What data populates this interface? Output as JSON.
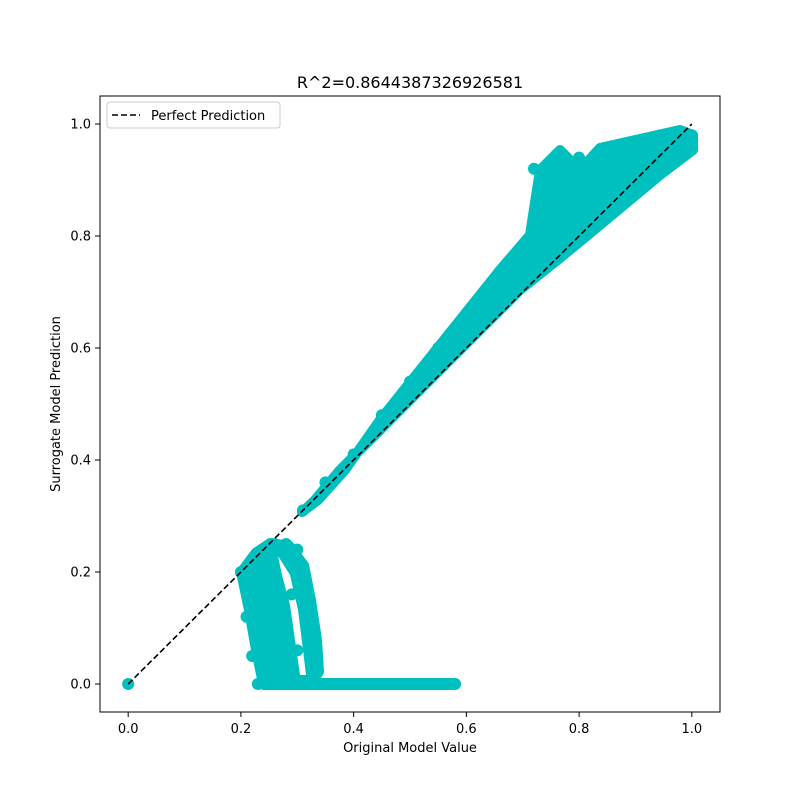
{
  "chart_data": {
    "type": "scatter",
    "title": "R^2=0.8644387326926581",
    "xlabel": "Original Model Value",
    "ylabel": "Surrogate Model Prediction",
    "xlim": [
      -0.05,
      1.05
    ],
    "ylim": [
      -0.05,
      1.05
    ],
    "xticks": [
      0.0,
      0.2,
      0.4,
      0.6,
      0.8,
      1.0
    ],
    "yticks": [
      0.0,
      0.2,
      0.4,
      0.6,
      0.8,
      1.0
    ],
    "xtick_labels": [
      "0.0",
      "0.2",
      "0.4",
      "0.6",
      "0.8",
      "1.0"
    ],
    "ytick_labels": [
      "0.0",
      "0.2",
      "0.4",
      "0.6",
      "0.8",
      "1.0"
    ],
    "grid": false,
    "legend": {
      "placement": "top-left",
      "entries": [
        "Perfect Prediction"
      ]
    },
    "colors": {
      "points": "#00bfbf",
      "reference_line": "#000000"
    },
    "series": [
      {
        "kind": "scatter",
        "points": [
          [
            0.0,
            0.0
          ],
          [
            0.2,
            0.2
          ],
          [
            0.22,
            0.22
          ],
          [
            0.24,
            0.24
          ],
          [
            0.26,
            0.25
          ],
          [
            0.28,
            0.25
          ],
          [
            0.3,
            0.24
          ],
          [
            0.31,
            0.2
          ],
          [
            0.21,
            0.12
          ],
          [
            0.22,
            0.05
          ],
          [
            0.23,
            0.0
          ],
          [
            0.25,
            0.18
          ],
          [
            0.26,
            0.08
          ],
          [
            0.27,
            0.0
          ],
          [
            0.29,
            0.16
          ],
          [
            0.3,
            0.06
          ],
          [
            0.31,
            0.0
          ],
          [
            0.32,
            0.12
          ],
          [
            0.33,
            0.04
          ],
          [
            0.35,
            0.0
          ],
          [
            0.4,
            0.0
          ],
          [
            0.45,
            0.0
          ],
          [
            0.5,
            0.0
          ],
          [
            0.55,
            0.0
          ],
          [
            0.58,
            0.0
          ],
          [
            0.31,
            0.31
          ],
          [
            0.35,
            0.36
          ],
          [
            0.4,
            0.41
          ],
          [
            0.45,
            0.48
          ],
          [
            0.5,
            0.54
          ],
          [
            0.55,
            0.6
          ],
          [
            0.6,
            0.66
          ],
          [
            0.65,
            0.72
          ],
          [
            0.7,
            0.78
          ],
          [
            0.72,
            0.92
          ],
          [
            0.75,
            0.76
          ],
          [
            0.8,
            0.94
          ],
          [
            0.85,
            0.85
          ],
          [
            0.9,
            0.9
          ],
          [
            0.95,
            0.95
          ],
          [
            1.0,
            0.98
          ]
        ]
      },
      {
        "kind": "line",
        "name": "Perfect Prediction",
        "x": [
          0.0,
          1.0
        ],
        "y": [
          0.0,
          1.0
        ]
      }
    ]
  }
}
